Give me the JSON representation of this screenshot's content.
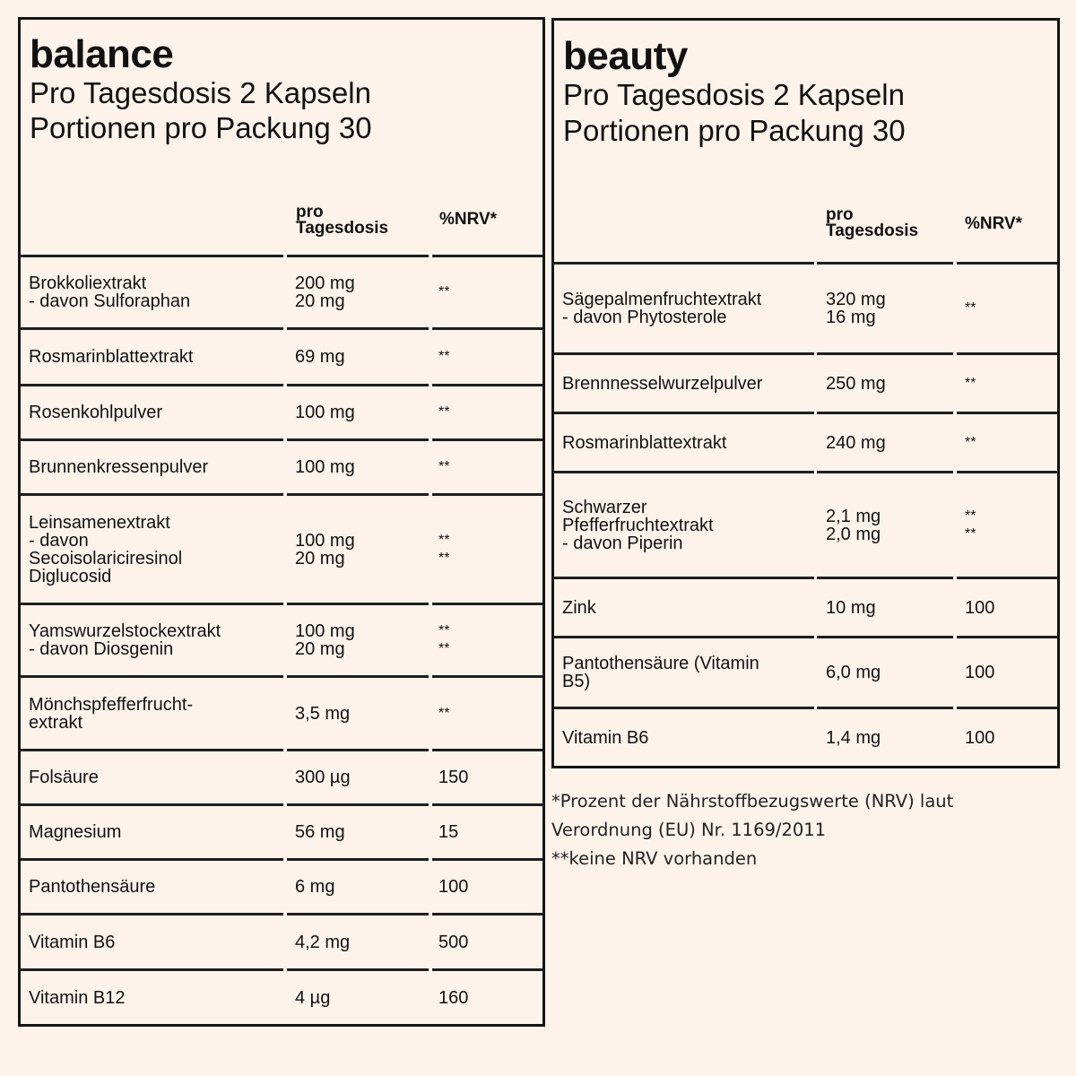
{
  "balance": {
    "title": "balance",
    "line1": "Pro Tagesdosis 2 Kapseln",
    "line2": "Portionen pro Packung 30",
    "header": {
      "col2": "pro\nTagesdosis",
      "col3": "%NRV*"
    },
    "rows": [
      {
        "name": "Brokkoliextrakt\n- davon Sulforaphan",
        "dose": "200 mg\n20 mg",
        "nrv": "**"
      },
      {
        "name": "Rosmarinblattextrakt",
        "dose": "69 mg",
        "nrv": "**"
      },
      {
        "name": "Rosenkohlpulver",
        "dose": "100 mg",
        "nrv": "**"
      },
      {
        "name": "Brunnenkressenpulver",
        "dose": "100 mg",
        "nrv": "**"
      },
      {
        "name": "Leinsamenextrakt\n- davon\nSecoisolariciresinol\nDiglucosid",
        "dose": "100 mg\n20 mg",
        "nrv": "**\n**"
      },
      {
        "name": "Yamswurzelstockextrakt\n- davon Diosgenin",
        "dose": "100 mg\n20 mg",
        "nrv": "**\n**"
      },
      {
        "name": "Mönchspfefferfrucht-\nextrakt",
        "dose": "3,5 mg",
        "nrv": "**"
      },
      {
        "name": "Folsäure",
        "dose": "300 µg",
        "nrv": "150"
      },
      {
        "name": "Magnesium",
        "dose": "56 mg",
        "nrv": "15"
      },
      {
        "name": "Pantothensäure",
        "dose": "6 mg",
        "nrv": "100"
      },
      {
        "name": "Vitamin B6",
        "dose": "4,2 mg",
        "nrv": "500"
      },
      {
        "name": "Vitamin B12",
        "dose": "4 µg",
        "nrv": "160"
      }
    ]
  },
  "beauty": {
    "title": "beauty",
    "line1": "Pro Tagesdosis 2 Kapseln",
    "line2": "Portionen pro Packung 30",
    "header": {
      "col2": "pro\nTagesdosis",
      "col3": "%NRV*"
    },
    "rows": [
      {
        "name": "Sägepalmenfruchtextrakt\n- davon Phytosterole",
        "dose": "320 mg\n16 mg",
        "nrv": "**"
      },
      {
        "name": "Brennnesselwurzelpulver",
        "dose": "250 mg",
        "nrv": "**"
      },
      {
        "name": "Rosmarinblattextrakt",
        "dose": "240 mg",
        "nrv": "**"
      },
      {
        "name": "Schwarzer\nPfefferfruchtextrakt\n- davon Piperin",
        "dose": "2,1 mg\n2,0 mg",
        "nrv": "**\n**"
      },
      {
        "name": "Zink",
        "dose": "10 mg",
        "nrv": "100"
      },
      {
        "name": "Pantothensäure (Vitamin\nB5)",
        "dose": "6,0 mg",
        "nrv": "100"
      },
      {
        "name": "Vitamin B6",
        "dose": "1,4 mg",
        "nrv": "100"
      }
    ]
  },
  "footnotes": {
    "line1": "*Prozent der Nährstoffbezugswerte (NRV) laut",
    "line2": "Verordnung (EU) Nr. 1169/2011",
    "line3": "**keine NRV vorhanden"
  }
}
